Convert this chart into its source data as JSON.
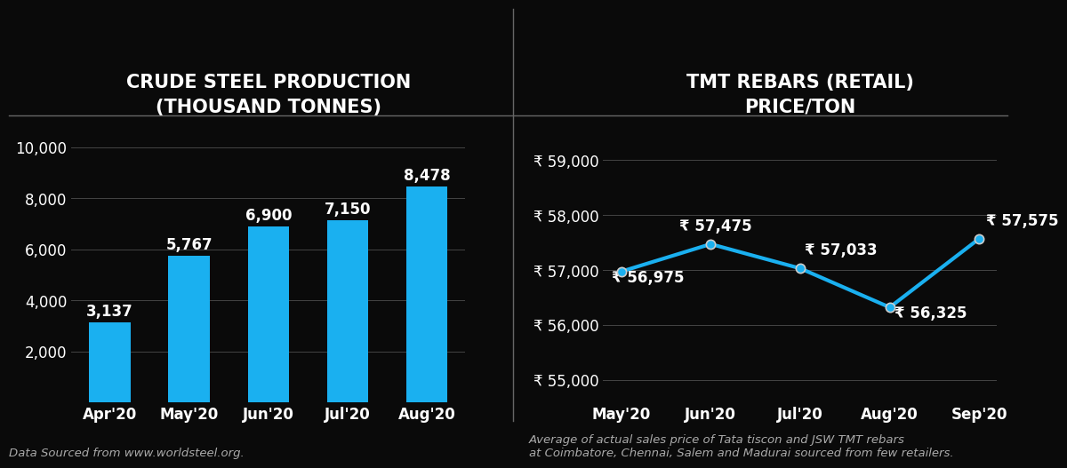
{
  "background_color": "#0a0a0a",
  "left_chart": {
    "title": "CRUDE STEEL PRODUCTION\n(THOUSAND TONNES)",
    "categories": [
      "Apr'20",
      "May'20",
      "Jun'20",
      "Jul'20",
      "Aug'20"
    ],
    "values": [
      3137,
      5767,
      6900,
      7150,
      8478
    ],
    "bar_color": "#1ab0f0",
    "yticks": [
      2000,
      4000,
      6000,
      8000,
      10000
    ],
    "ylim": [
      0,
      10800
    ],
    "footnote": "Data Sourced from www.worldsteel.org.",
    "grid_color": "#444444",
    "title_color": "#ffffff",
    "tick_color": "#ffffff",
    "label_color": "#ffffff"
  },
  "right_chart": {
    "title": "TMT REBARS (RETAIL)\nPRICE/TON",
    "categories": [
      "May'20",
      "Jun'20",
      "Jul'20",
      "Aug'20",
      "Sep'20"
    ],
    "values": [
      56975,
      57475,
      57033,
      56325,
      57575
    ],
    "line_color": "#1ab0f0",
    "marker_color": "#1ab0f0",
    "marker_edge_color": "#cccccc",
    "yticks": [
      55000,
      56000,
      57000,
      58000,
      59000
    ],
    "ylim": [
      54600,
      59600
    ],
    "footnote": "Average of actual sales price of Tata tiscon and JSW TMT rebars\nat Coimbatore, Chennai, Salem and Madurai sourced from few retailers.",
    "grid_color": "#444444",
    "title_color": "#ffffff",
    "tick_color": "#ffffff",
    "label_color": "#ffffff",
    "rupee_symbol": "₹"
  },
  "separator_color": "#666666",
  "title_fontsize": 15,
  "tick_fontsize": 12,
  "annotation_fontsize": 12,
  "footnote_fontsize": 9.5
}
